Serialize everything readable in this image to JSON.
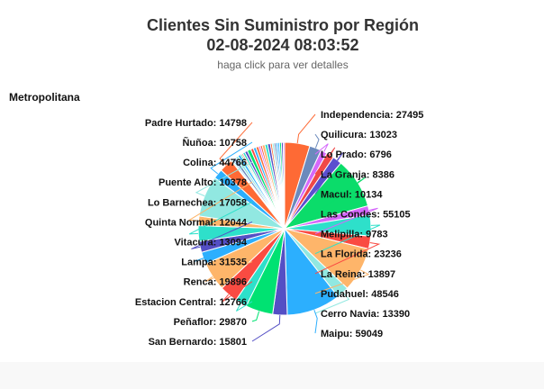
{
  "title_line1": "Clientes Sin Suministro por Región",
  "title_line2": "02-08-2024 08:03:52",
  "subtitle": "haga click para ver detalles",
  "section_label": "Metropolitana",
  "chart_data": {
    "type": "pie",
    "title": "Clientes Sin Suministro por Región",
    "subtitle": "02-08-2024 08:03:52",
    "labeled_slices": [
      {
        "name": "Independencia",
        "value": 27495,
        "color": "#fe6a35",
        "side": "right"
      },
      {
        "name": "Quilicura",
        "value": 13023,
        "color": "#6b8abc",
        "side": "right"
      },
      {
        "name": "Lo Prado",
        "value": 6796,
        "color": "#d568fb",
        "side": "right"
      },
      {
        "name": "La Granja",
        "value": 8386,
        "color": "#f04848",
        "side": "right"
      },
      {
        "name": "Macul",
        "value": 10134,
        "color": "#5b4fcf",
        "side": "right"
      },
      {
        "name": "Las Condes",
        "value": 55105,
        "color": "#0bdc6a",
        "side": "right"
      },
      {
        "name": "Melipilla",
        "value": 9783,
        "color": "#d568fb",
        "side": "right"
      },
      {
        "name": "La Florida",
        "value": 23236,
        "color": "#2ee0ca",
        "side": "right"
      },
      {
        "name": "La Reina",
        "value": 13897,
        "color": "#fa4b42",
        "side": "right"
      },
      {
        "name": "Pudahuel",
        "value": 48546,
        "color": "#feb56a",
        "side": "right"
      },
      {
        "name": "Cerro Navia",
        "value": 13390,
        "color": "#91e8e1",
        "side": "right"
      },
      {
        "name": "Maipu",
        "value": 59049,
        "color": "#2caffe",
        "side": "right"
      },
      {
        "name": "San Bernardo",
        "value": 15801,
        "color": "#544fc5",
        "side": "left"
      },
      {
        "name": "Peñaflor",
        "value": 29870,
        "color": "#00e272",
        "side": "left"
      },
      {
        "name": "Estacion Central",
        "value": 12766,
        "color": "#2ee0ca",
        "side": "left"
      },
      {
        "name": "Renca",
        "value": 19896,
        "color": "#fa4b42",
        "side": "left"
      },
      {
        "name": "Lampa",
        "value": 31535,
        "color": "#feb56a",
        "side": "left"
      },
      {
        "name": "Vitacura",
        "value": 13094,
        "color": "#2caffe",
        "side": "left"
      },
      {
        "name": "Quinta Normal",
        "value": 12044,
        "color": "#544fc5",
        "side": "left"
      },
      {
        "name": "Lo Barnechea",
        "value": 17058,
        "color": "#2ee0ca",
        "side": "left"
      },
      {
        "name": "Puente Alto",
        "value": 10378,
        "color": "#feb56a",
        "side": "left"
      },
      {
        "name": "Colina",
        "value": 44766,
        "color": "#91e8e1",
        "side": "left"
      },
      {
        "name": "Ñuñoa",
        "value": 10758,
        "color": "#2caffe",
        "side": "left"
      },
      {
        "name": "Padre Hurtado",
        "value": 14798,
        "color": "#fe6a35",
        "side": "left"
      }
    ],
    "unlabeled_slices": [
      {
        "value": 1200,
        "color": "#00e272"
      },
      {
        "value": 1600,
        "color": "#2caffe"
      },
      {
        "value": 3000,
        "color": "#6b8abc"
      },
      {
        "value": 3000,
        "color": "#91e8e1"
      },
      {
        "value": 3000,
        "color": "#2caffe"
      },
      {
        "value": 1500,
        "color": "#00e272"
      },
      {
        "value": 1500,
        "color": "#fa4b42"
      },
      {
        "value": 2500,
        "color": "#2ee0ca"
      },
      {
        "value": 3000,
        "color": "#544fc5"
      },
      {
        "value": 4000,
        "color": "#00e272"
      },
      {
        "value": 3000,
        "color": "#fa4b42"
      },
      {
        "value": 3000,
        "color": "#2caffe"
      },
      {
        "value": 3000,
        "color": "#fe6a35"
      },
      {
        "value": 2000,
        "color": "#d568fb"
      },
      {
        "value": 2000,
        "color": "#fa4b42"
      },
      {
        "value": 3000,
        "color": "#feb56a"
      },
      {
        "value": 3000,
        "color": "#2ee0ca"
      },
      {
        "value": 3000,
        "color": "#544fc5"
      },
      {
        "value": 2000,
        "color": "#fe6a35"
      },
      {
        "value": 2000,
        "color": "#91e8e1"
      },
      {
        "value": 2000,
        "color": "#6b8abc"
      },
      {
        "value": 2000,
        "color": "#2caffe"
      },
      {
        "value": 2000,
        "color": "#2caffe"
      },
      {
        "value": 2000,
        "color": "#00e272"
      },
      {
        "value": 2000,
        "color": "#544fc5"
      },
      {
        "value": 1500,
        "color": "#d568fb"
      }
    ]
  }
}
